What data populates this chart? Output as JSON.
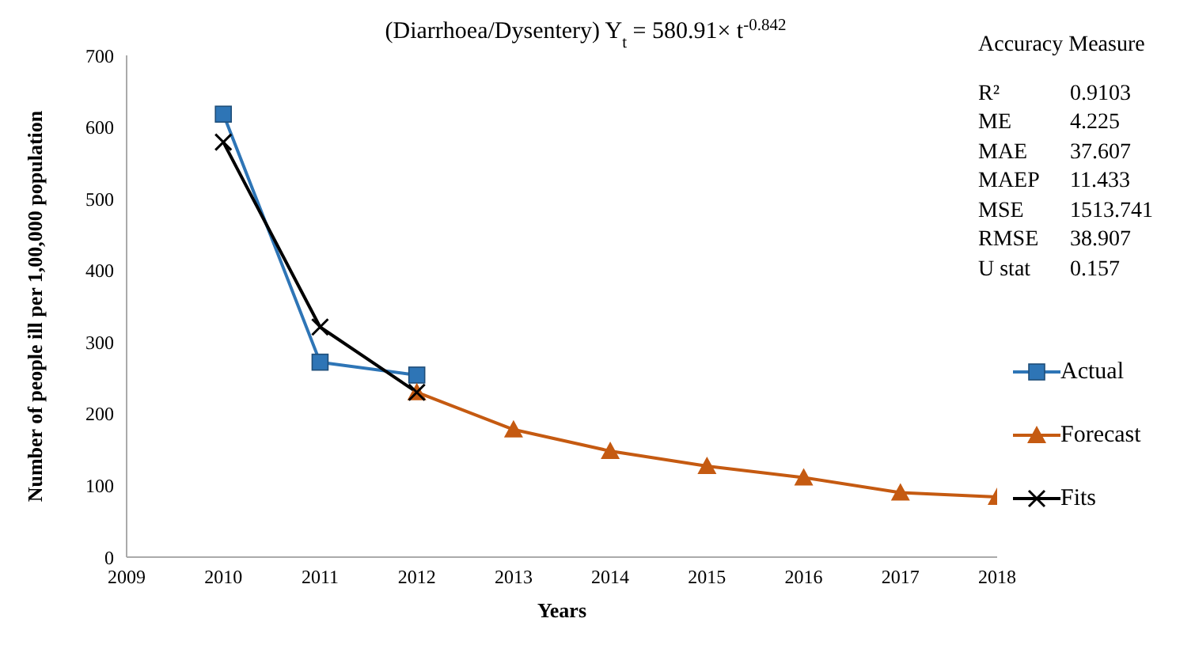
{
  "chart_data": {
    "type": "line",
    "title": "(Diarrhoea/Dysentery) Y$_{t}$ = 580.91× t$^{-0.842}$",
    "xlabel": "Years",
    "ylabel": "Number of people ill per 1,00,000 population",
    "annotations": [
      "Accuracy Measure",
      "R² 0.9103",
      "ME 4.225",
      "MAE 37.607",
      "MAEP 11.433",
      "MSE 1513.741",
      "RMSE 38.907",
      "U stat 0.157"
    ],
    "series": [
      {
        "name": "Actual",
        "color": "#2e75b6",
        "marker": "square",
        "x": [
          2010,
          2011,
          2012
        ],
        "values": [
          618,
          272,
          254
        ]
      },
      {
        "name": "Forecast",
        "color": "#c55a11",
        "marker": "triangle",
        "x": [
          2012,
          2013,
          2014,
          2015,
          2016,
          2017,
          2018
        ],
        "values": [
          230,
          178,
          148,
          127,
          111,
          90,
          84
        ]
      },
      {
        "name": "Fits",
        "color": "#000000",
        "marker": "cross",
        "x": [
          2010,
          2011,
          2012
        ],
        "values": [
          579,
          321,
          230
        ]
      }
    ],
    "xlim": [
      2009,
      2018
    ],
    "xticks": [
      2009,
      2010,
      2011,
      2012,
      2013,
      2014,
      2015,
      2016,
      2017,
      2018
    ],
    "ylim": [
      0,
      700
    ],
    "yticks": [
      0,
      100,
      200,
      300,
      400,
      500,
      600,
      700
    ],
    "grid": false,
    "legend": "right"
  }
}
